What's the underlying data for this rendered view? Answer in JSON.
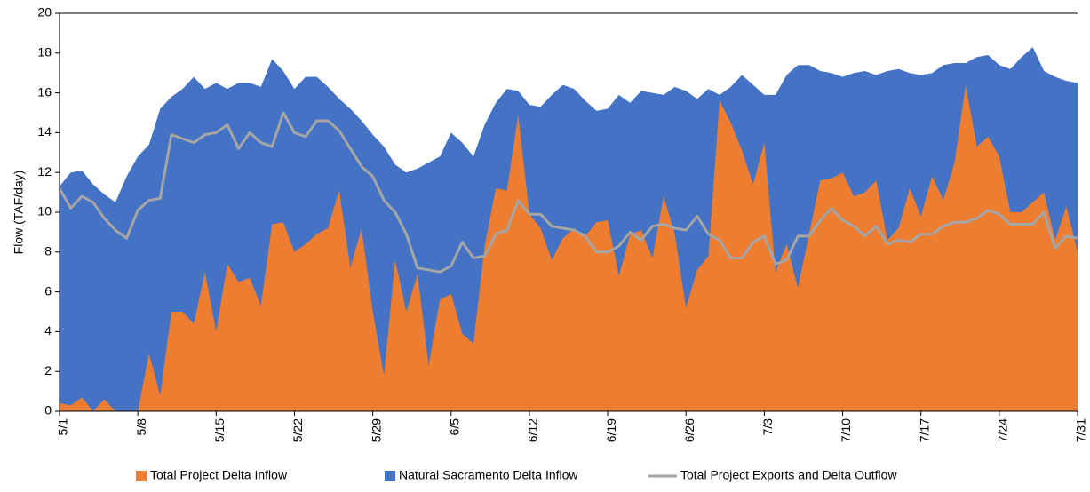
{
  "chart_data": {
    "type": "area",
    "y_label": "Flow (TAF/day)",
    "categories": [
      "5/1",
      null,
      null,
      null,
      null,
      null,
      null,
      "5/8",
      null,
      null,
      null,
      null,
      null,
      null,
      "5/15",
      null,
      null,
      null,
      null,
      null,
      null,
      "5/22",
      null,
      null,
      null,
      null,
      null,
      null,
      "5/29",
      null,
      null,
      null,
      null,
      null,
      null,
      "6/5",
      null,
      null,
      null,
      null,
      null,
      null,
      "6/12",
      null,
      null,
      null,
      null,
      null,
      null,
      "6/19",
      null,
      null,
      null,
      null,
      null,
      null,
      "6/26",
      null,
      null,
      null,
      null,
      null,
      null,
      "7/3",
      null,
      null,
      null,
      null,
      null,
      null,
      "7/10",
      null,
      null,
      null,
      null,
      null,
      null,
      "7/17",
      null,
      null,
      null,
      null,
      null,
      null,
      "7/24",
      null,
      null,
      null,
      null,
      null,
      null,
      "7/31"
    ],
    "series": [
      {
        "name": "Natural Sacramento Delta Inflow",
        "color": "#4472c4",
        "kind": "area",
        "values": [
          11.3,
          12.0,
          12.1,
          11.4,
          10.9,
          10.5,
          11.8,
          12.8,
          13.4,
          15.2,
          15.8,
          16.2,
          16.8,
          16.2,
          16.5,
          16.2,
          16.5,
          16.5,
          16.3,
          17.7,
          17.1,
          16.2,
          16.8,
          16.8,
          16.3,
          15.7,
          15.2,
          14.6,
          13.9,
          13.3,
          12.4,
          12.0,
          12.2,
          12.5,
          12.8,
          14.0,
          13.5,
          12.8,
          14.4,
          15.5,
          16.2,
          16.1,
          15.4,
          15.3,
          15.9,
          16.4,
          16.2,
          15.6,
          15.1,
          15.2,
          15.9,
          15.5,
          16.1,
          16.0,
          15.9,
          16.3,
          16.1,
          15.7,
          16.2,
          15.9,
          16.3,
          16.9,
          16.4,
          15.9,
          15.9,
          16.9,
          17.4,
          17.4,
          17.1,
          17.0,
          16.8,
          17.0,
          17.1,
          16.9,
          17.1,
          17.2,
          17.0,
          16.9,
          17.0,
          17.4,
          17.5,
          17.5,
          17.8,
          17.9,
          17.4,
          17.2,
          17.8,
          18.3,
          17.1,
          16.8,
          16.6,
          16.5
        ]
      },
      {
        "name": "Total Project Delta Inflow",
        "color": "#ed7d31",
        "kind": "area",
        "values": [
          0.4,
          0.3,
          0.7,
          0,
          0.6,
          0,
          0,
          0,
          2.9,
          0.8,
          5.0,
          5.0,
          4.4,
          7.0,
          4.0,
          7.4,
          6.5,
          6.7,
          5.3,
          9.4,
          9.5,
          8.0,
          8.4,
          8.9,
          9.2,
          11.1,
          7.2,
          9.2,
          5.0,
          1.8,
          7.6,
          5.0,
          6.9,
          2.3,
          5.6,
          5.9,
          3.9,
          3.4,
          8.3,
          11.2,
          11.1,
          14.9,
          9.9,
          9.2,
          7.6,
          8.7,
          9.2,
          8.8,
          9.5,
          9.6,
          6.8,
          8.9,
          9.1,
          7.7,
          10.8,
          8.9,
          5.2,
          7.1,
          7.8,
          15.6,
          14.5,
          13.1,
          11.4,
          13.5,
          7.0,
          8.4,
          6.2,
          8.9,
          11.6,
          11.7,
          12.0,
          10.8,
          11.0,
          11.6,
          8.6,
          9.2,
          11.2,
          9.8,
          11.8,
          10.6,
          12.5,
          16.4,
          13.3,
          13.8,
          12.8,
          10.0,
          10.0,
          10.5,
          11.0,
          8.6,
          10.3,
          8.0
        ]
      },
      {
        "name": "Total Project Exports and Delta Outflow",
        "color": "#a5a5a5",
        "kind": "line",
        "values": [
          11.2,
          10.2,
          10.8,
          10.5,
          9.7,
          9.1,
          8.7,
          10.1,
          10.6,
          10.7,
          13.9,
          13.7,
          13.5,
          13.9,
          14.0,
          14.4,
          13.2,
          14.0,
          13.5,
          13.3,
          15.0,
          14.0,
          13.8,
          14.6,
          14.6,
          14.1,
          13.2,
          12.3,
          11.8,
          10.6,
          10.0,
          8.9,
          7.2,
          7.1,
          7.0,
          7.3,
          8.5,
          7.7,
          7.8,
          8.9,
          9.1,
          10.6,
          9.9,
          9.9,
          9.3,
          9.2,
          9.1,
          8.8,
          8.0,
          8.0,
          8.3,
          9.0,
          8.6,
          9.3,
          9.4,
          9.2,
          9.1,
          9.8,
          8.9,
          8.6,
          7.7,
          7.7,
          8.5,
          8.8,
          7.4,
          7.6,
          8.8,
          8.8,
          9.6,
          10.2,
          9.6,
          9.3,
          8.8,
          9.3,
          8.4,
          8.6,
          8.5,
          8.9,
          8.9,
          9.3,
          9.5,
          9.5,
          9.7,
          10.1,
          9.9,
          9.4,
          9.4,
          9.4,
          10.0,
          8.2,
          8.8,
          8.7
        ]
      }
    ],
    "legend_order": [
      1,
      0,
      2
    ],
    "legend": "bottom",
    "ylim": [
      0,
      20
    ],
    "yticks": [
      0,
      2,
      4,
      6,
      8,
      10,
      12,
      14,
      16,
      18,
      20
    ]
  }
}
